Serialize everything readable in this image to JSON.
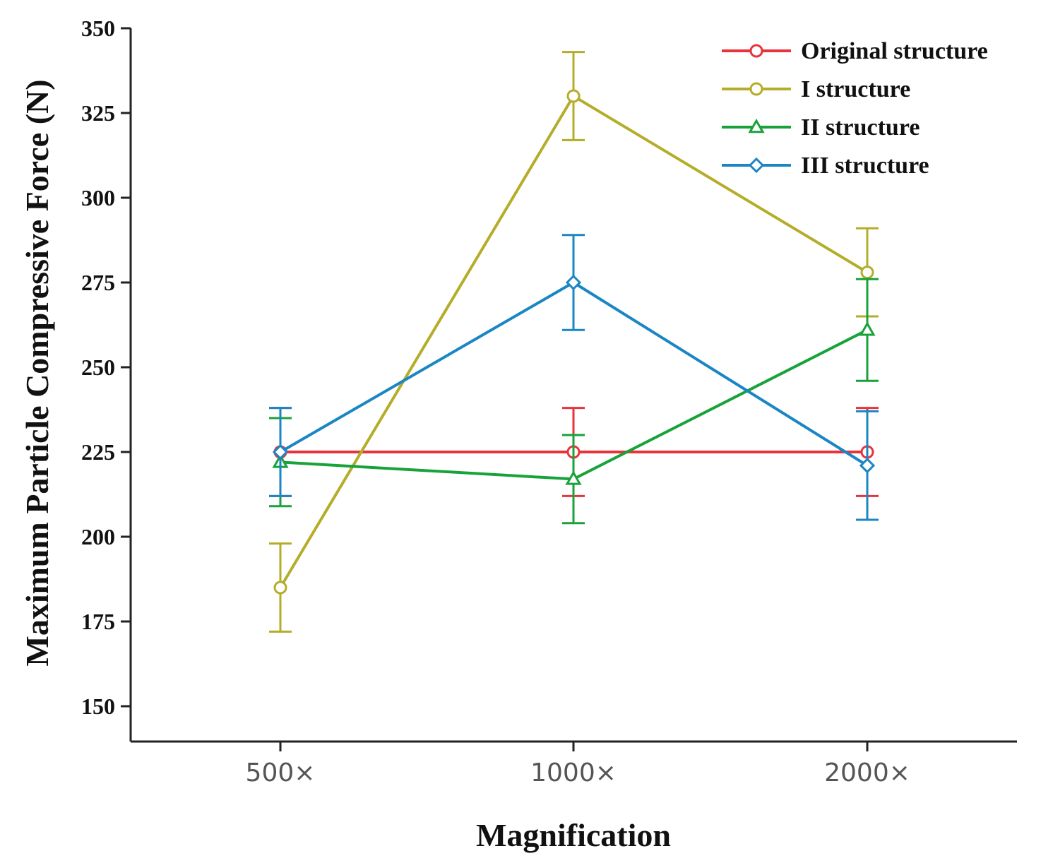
{
  "chart_data": {
    "type": "line",
    "title": "",
    "xlabel": "Magnification",
    "ylabel": "Maximum Particle Compressive Force (N)",
    "categories": [
      "500×",
      "1000×",
      "2000×"
    ],
    "ylim": [
      150,
      350
    ],
    "yticks": [
      150,
      175,
      200,
      225,
      250,
      275,
      300,
      325,
      350
    ],
    "grid": false,
    "legend_position": "top-right",
    "series": [
      {
        "name": "Original structure",
        "color": "#e8333b",
        "marker": "circle",
        "values": [
          225,
          225,
          225
        ],
        "errors": [
          13,
          13,
          13
        ]
      },
      {
        "name": "I structure",
        "color": "#b5ad2a",
        "marker": "circle",
        "values": [
          185,
          330,
          278
        ],
        "errors": [
          13,
          13,
          13
        ]
      },
      {
        "name": "II structure",
        "color": "#18a23a",
        "marker": "triangle",
        "values": [
          222,
          217,
          261
        ],
        "errors": [
          13,
          13,
          15
        ]
      },
      {
        "name": "III structure",
        "color": "#1a86c3",
        "marker": "diamond",
        "values": [
          225,
          275,
          221
        ],
        "errors": [
          13,
          14,
          16
        ]
      }
    ]
  }
}
